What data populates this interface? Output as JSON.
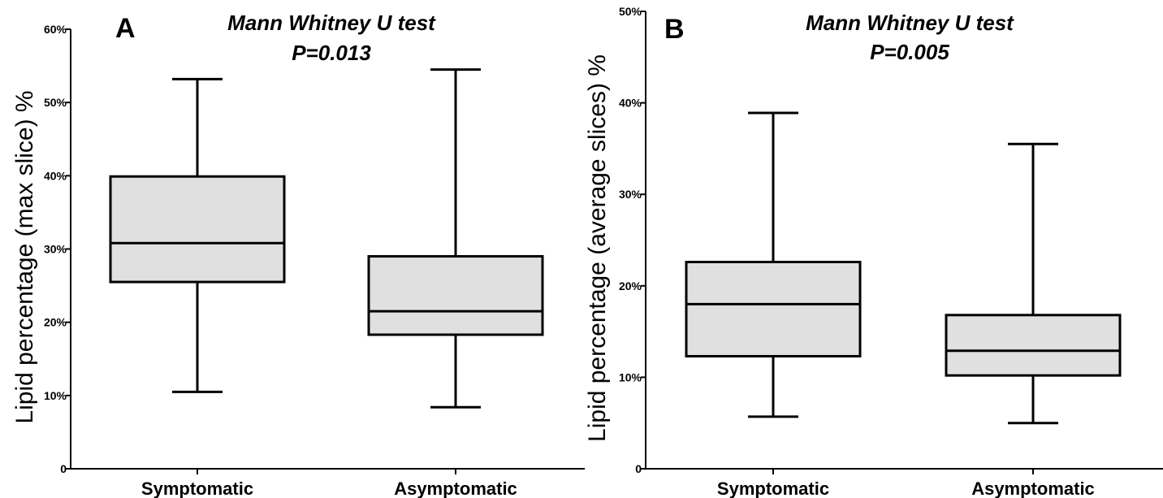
{
  "chart_data": [
    {
      "type": "box",
      "panel_letter": "A",
      "test_name": "Mann Whitney U test",
      "p_value_text": "P=0.013",
      "ylabel": "Lipid percentage (max slice) %",
      "ylim": [
        0,
        60
      ],
      "yticks": [
        0,
        10,
        20,
        30,
        40,
        50,
        60
      ],
      "ytick_labels": [
        "0",
        "10%",
        "20%",
        "30%",
        "40%",
        "50%",
        "60%"
      ],
      "categories": [
        "Symptomatic",
        "Asymptomatic"
      ],
      "boxes": [
        {
          "name": "Symptomatic",
          "min": 10.5,
          "q1": 25.5,
          "median": 30.8,
          "q3": 39.9,
          "max": 53.2
        },
        {
          "name": "Asymptomatic",
          "min": 8.4,
          "q1": 18.3,
          "median": 21.5,
          "q3": 29.0,
          "max": 54.5
        }
      ],
      "box_fill": "#e0e0e0",
      "grid": false
    },
    {
      "type": "box",
      "panel_letter": "B",
      "test_name": "Mann Whitney U test",
      "p_value_text": "P=0.005",
      "ylabel": "Lipid percentage (average slices) %",
      "ylim": [
        0,
        50
      ],
      "yticks": [
        0,
        10,
        20,
        30,
        40,
        50
      ],
      "ytick_labels": [
        "0",
        "10%",
        "20%",
        "30%",
        "40%",
        "50%"
      ],
      "categories": [
        "Symptomatic",
        "Asymptomatic"
      ],
      "boxes": [
        {
          "name": "Symptomatic",
          "min": 5.7,
          "q1": 12.3,
          "median": 18.0,
          "q3": 22.6,
          "max": 38.9
        },
        {
          "name": "Asymptomatic",
          "min": 5.0,
          "q1": 10.2,
          "median": 12.9,
          "q3": 16.8,
          "max": 35.5
        }
      ],
      "box_fill": "#e0e0e0",
      "grid": false
    }
  ]
}
